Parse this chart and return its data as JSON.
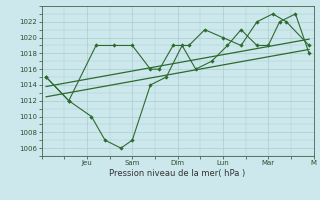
{
  "bg_color": "#cce8ec",
  "grid_color": "#aacccc",
  "line_color": "#2d6a2d",
  "xlabel": "Pression niveau de la mer( hPa )",
  "ylim": [
    1005,
    1024
  ],
  "yticks": [
    1006,
    1008,
    1010,
    1012,
    1014,
    1016,
    1018,
    1020,
    1022
  ],
  "xlim": [
    0,
    12
  ],
  "x_tick_pos": [
    2,
    4,
    6,
    8,
    10,
    12
  ],
  "x_tick_labels": [
    "Jeu",
    "Sam",
    "Dim",
    "Lun",
    "Mar",
    "M"
  ],
  "s1_x": [
    0.2,
    1.2,
    2.2,
    2.8,
    3.5,
    4.0,
    4.8,
    5.5,
    6.2,
    6.8,
    7.5,
    8.2,
    8.8,
    9.5,
    10.0,
    10.5,
    11.2,
    11.8
  ],
  "s1_y": [
    1015,
    1012,
    1010,
    1007,
    1006,
    1007,
    1014,
    1015,
    1019,
    1016,
    1017,
    1019,
    1021,
    1019,
    1019,
    1022,
    1023,
    1018
  ],
  "s2_x": [
    0.2,
    1.2,
    2.4,
    3.2,
    4.0,
    4.8,
    5.2,
    5.8,
    6.5,
    7.2,
    8.0,
    8.8,
    9.5,
    10.2,
    10.8,
    11.8
  ],
  "s2_y": [
    1015,
    1012,
    1019,
    1019,
    1019,
    1016,
    1016,
    1019,
    1019,
    1021,
    1020,
    1019,
    1022,
    1023,
    1022,
    1019
  ],
  "trend1_x": [
    0.2,
    11.8
  ],
  "trend1_y": [
    1012.5,
    1018.5
  ],
  "trend2_x": [
    0.2,
    11.8
  ],
  "trend2_y": [
    1013.8,
    1019.8
  ]
}
